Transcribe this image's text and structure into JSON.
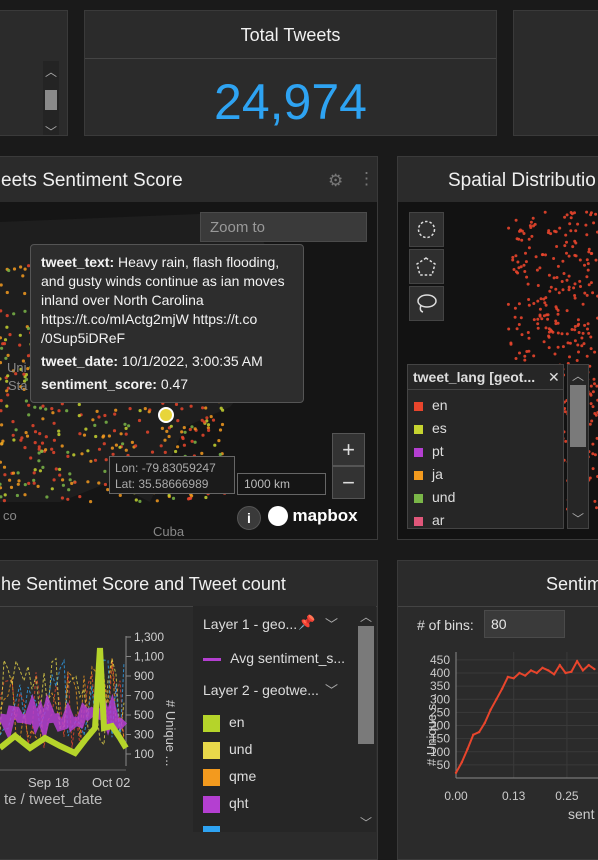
{
  "total_tweets": {
    "title": "Total Tweets",
    "value": "24,974"
  },
  "map_panel": {
    "title": "eets Sentiment Score",
    "zoom_placeholder": "Zoom to",
    "tooltip": {
      "text_key": "tweet_text:",
      "text_val": "Heavy rain, flash flooding, and gusty winds continue as ian moves inland over North Carolina https://t.co/mIActg2mjW https://t.co /0Sup5iDReF",
      "date_key": "tweet_date:",
      "date_val": "10/1/2022, 3:00:35 AM",
      "score_key": "sentiment_score:",
      "score_val": "0.47"
    },
    "lon": "Lon: -79.83059247",
    "lat": "Lat: 35.58666989",
    "scale": "1000 km",
    "zoom_in": "+",
    "zoom_out": "−",
    "place_uni": "Uni",
    "place_sta": "Sta",
    "place_co": "co",
    "place_cuba": "Cuba",
    "mapbox": "mapbox"
  },
  "spatial_panel": {
    "title": "Spatial Distributio",
    "legend_title": "tweet_lang [geot...",
    "legend_items": [
      {
        "label": "en",
        "color": "#e8452c"
      },
      {
        "label": "es",
        "color": "#c6d430"
      },
      {
        "label": "pt",
        "color": "#b43fd1"
      },
      {
        "label": "ja",
        "color": "#f39a1e"
      },
      {
        "label": "und",
        "color": "#7ab648"
      },
      {
        "label": "ar",
        "color": "#e0577a"
      }
    ]
  },
  "timeseries_panel": {
    "title": "he Sentimet Score and Tweet count",
    "x_ticks": [
      "Sep 18",
      "Oct 02"
    ],
    "x_label": "te / tweet_date",
    "right_ticks": [
      "1,300",
      "1,100",
      "900",
      "700",
      "500",
      "300",
      "100"
    ],
    "right_label": "# Unique ...",
    "layer1": "Layer 1 - geo...",
    "avg_label": "Avg sentiment_s...",
    "layer2": "Layer 2 - geotwe...",
    "layer2_items": [
      {
        "label": "en",
        "color": "#b5d42a"
      },
      {
        "label": "und",
        "color": "#e8d84a"
      },
      {
        "label": "qme",
        "color": "#f39a1e"
      },
      {
        "label": "qht",
        "color": "#b43fd1"
      }
    ]
  },
  "histogram_panel": {
    "title": "Sentim",
    "bins_label": "# of bins:",
    "bins_value": "80",
    "y_label": "# Unique s...",
    "x_label": "sent",
    "x_tick_labels": [
      "0.00",
      "0.13",
      "0.25"
    ],
    "y_tick_labels": [
      "450",
      "400",
      "350",
      "300",
      "250",
      "200",
      "150",
      "100",
      "50"
    ]
  },
  "chart_data": {
    "type": "line",
    "title": "",
    "xlabel": "sent",
    "ylabel": "# Unique s...",
    "x": [
      0.0,
      0.013,
      0.026,
      0.039,
      0.052,
      0.065,
      0.078,
      0.091,
      0.104,
      0.117,
      0.13,
      0.143,
      0.156,
      0.169,
      0.182,
      0.195,
      0.208,
      0.221,
      0.234,
      0.247,
      0.26,
      0.273,
      0.286,
      0.299,
      0.312
    ],
    "series": [
      {
        "values": [
          20,
          60,
          110,
          165,
          175,
          210,
          260,
          300,
          340,
          385,
          380,
          400,
          390,
          410,
          400,
          420,
          410,
          395,
          430,
          400,
          405,
          445,
          410,
          430,
          415
        ]
      }
    ],
    "xlim": [
      0,
      0.32
    ],
    "ylim": [
      0,
      480
    ]
  }
}
